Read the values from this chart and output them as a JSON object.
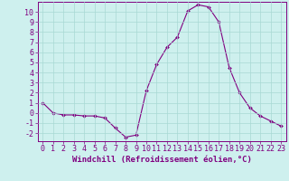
{
  "x": [
    0,
    1,
    2,
    3,
    4,
    5,
    6,
    7,
    8,
    9,
    10,
    11,
    12,
    13,
    14,
    15,
    16,
    17,
    18,
    19,
    20,
    21,
    22,
    23
  ],
  "y": [
    1,
    0,
    -0.2,
    -0.2,
    -0.3,
    -0.3,
    -0.5,
    -1.5,
    -2.4,
    -2.2,
    2.2,
    4.8,
    6.5,
    7.5,
    10.1,
    10.7,
    10.5,
    9.0,
    4.5,
    2.0,
    0.5,
    -0.3,
    -0.8,
    -1.3
  ],
  "line_color": "#800080",
  "marker": "D",
  "marker_size": 2.0,
  "bg_color": "#cef0ee",
  "grid_color": "#a8d8d4",
  "xlabel": "Windchill (Refroidissement éolien,°C)",
  "xlim": [
    -0.5,
    23.5
  ],
  "ylim": [
    -2.8,
    11.0
  ],
  "xticks": [
    0,
    1,
    2,
    3,
    4,
    5,
    6,
    7,
    8,
    9,
    10,
    11,
    12,
    13,
    14,
    15,
    16,
    17,
    18,
    19,
    20,
    21,
    22,
    23
  ],
  "yticks": [
    -2,
    -1,
    0,
    1,
    2,
    3,
    4,
    5,
    6,
    7,
    8,
    9,
    10
  ],
  "tick_color": "#800080",
  "spine_color": "#800080",
  "xlabel_color": "#800080",
  "xlabel_fontsize": 6.5,
  "tick_fontsize": 6.0
}
